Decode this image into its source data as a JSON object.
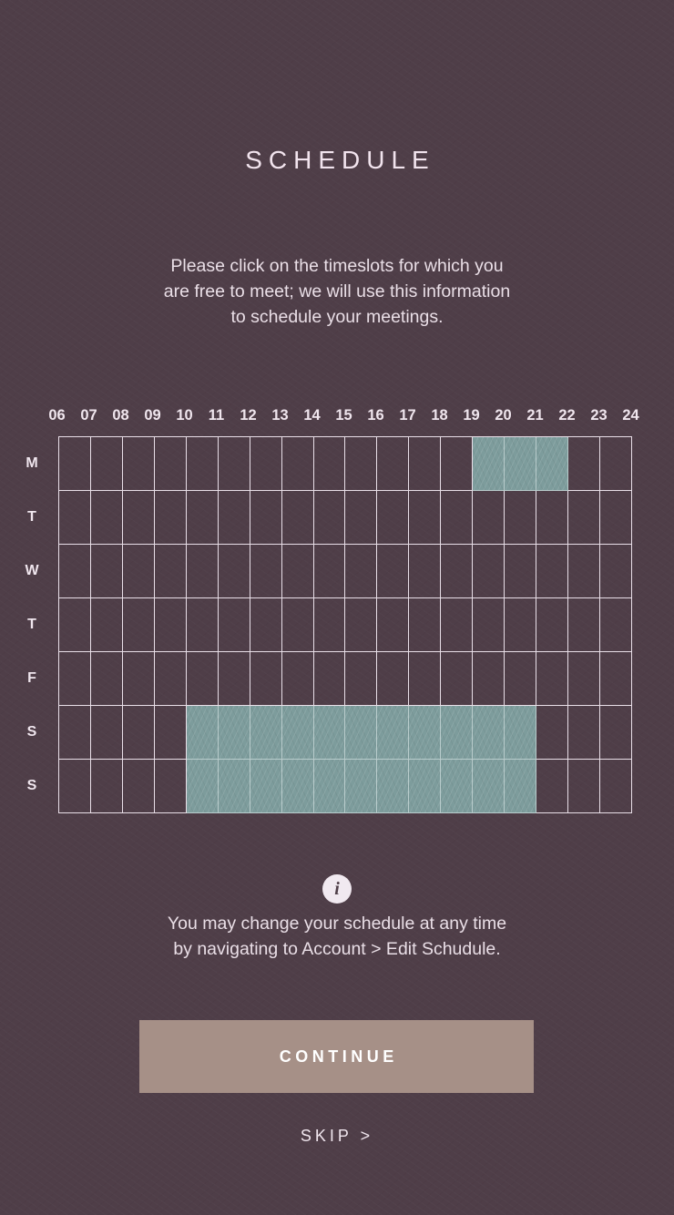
{
  "header": {
    "title": "SCHEDULE"
  },
  "instructions": {
    "line1": "Please click on the timeslots for which you",
    "line2": "are free to meet; we will use this information",
    "line3": "to schedule your meetings."
  },
  "schedule": {
    "hours": [
      "06",
      "07",
      "08",
      "09",
      "10",
      "11",
      "12",
      "13",
      "14",
      "15",
      "16",
      "17",
      "18",
      "19",
      "20",
      "21",
      "22",
      "23",
      "24"
    ],
    "days": [
      "M",
      "T",
      "W",
      "T",
      "F",
      "S",
      "S"
    ],
    "selected": [
      [
        0,
        0,
        0,
        0,
        0,
        0,
        0,
        0,
        0,
        0,
        0,
        0,
        0,
        1,
        1,
        1,
        0,
        0
      ],
      [
        0,
        0,
        0,
        0,
        0,
        0,
        0,
        0,
        0,
        0,
        0,
        0,
        0,
        0,
        0,
        0,
        0,
        0
      ],
      [
        0,
        0,
        0,
        0,
        0,
        0,
        0,
        0,
        0,
        0,
        0,
        0,
        0,
        0,
        0,
        0,
        0,
        0
      ],
      [
        0,
        0,
        0,
        0,
        0,
        0,
        0,
        0,
        0,
        0,
        0,
        0,
        0,
        0,
        0,
        0,
        0,
        0
      ],
      [
        0,
        0,
        0,
        0,
        0,
        0,
        0,
        0,
        0,
        0,
        0,
        0,
        0,
        0,
        0,
        0,
        0,
        0
      ],
      [
        0,
        0,
        0,
        0,
        1,
        1,
        1,
        1,
        1,
        1,
        1,
        1,
        1,
        1,
        1,
        0,
        0,
        0
      ],
      [
        0,
        0,
        0,
        0,
        1,
        1,
        1,
        1,
        1,
        1,
        1,
        1,
        1,
        1,
        1,
        0,
        0,
        0
      ]
    ],
    "colors": {
      "selected": "#7d9c9c",
      "grid_line": "#e9dfe8"
    }
  },
  "info": {
    "icon": "info-icon",
    "glyph": "i",
    "line1": "You may change your schedule at any time",
    "line2": "by navigating to Account > Edit Schudule."
  },
  "actions": {
    "continue_label": "CONTINUE",
    "skip_label": "SKIP >"
  },
  "colors": {
    "background": "#4f3e48",
    "button": "#a69087"
  }
}
